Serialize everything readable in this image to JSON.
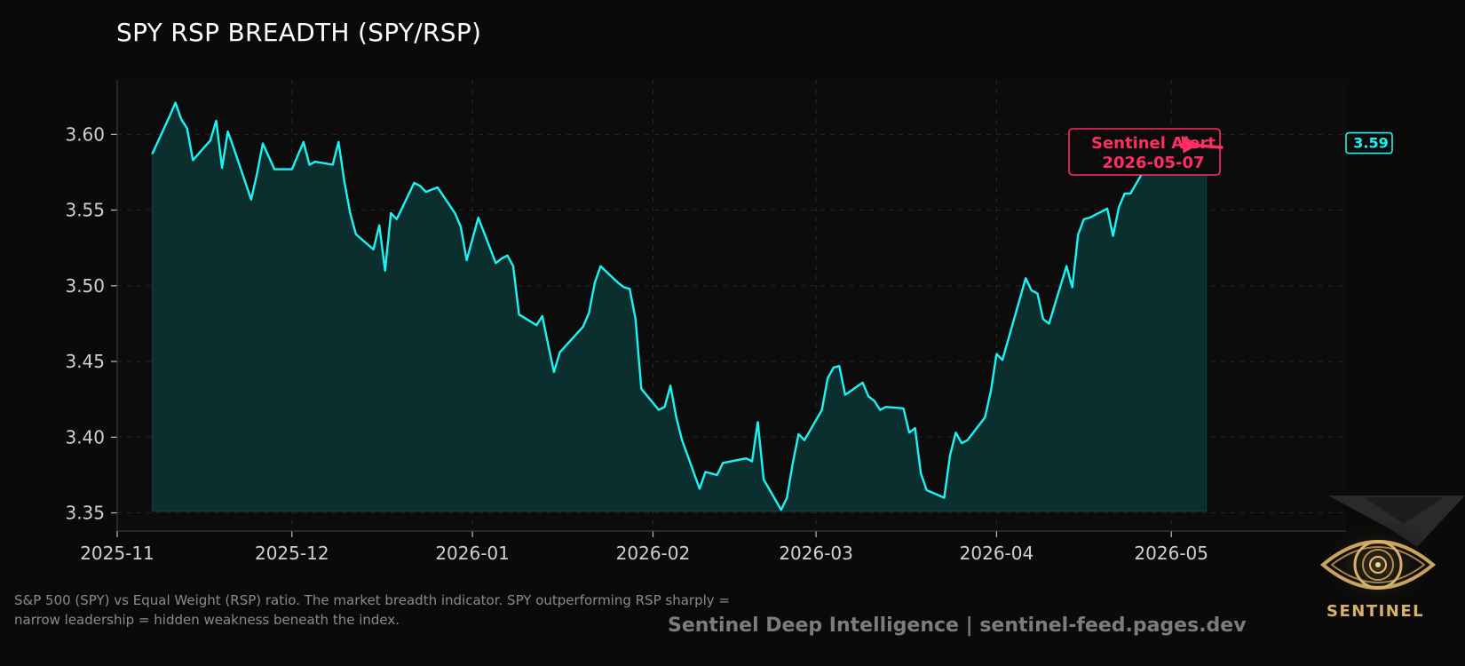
{
  "chart_data": {
    "type": "area",
    "title": "SPY RSP BREADTH (SPY/RSP)",
    "xlabel": "",
    "ylabel": "",
    "ylim": [
      3.338,
      3.636
    ],
    "xlim": [
      "2025-11-01",
      "2026-05-31"
    ],
    "y_ticks": [
      3.35,
      3.4,
      3.45,
      3.5,
      3.55,
      3.6
    ],
    "x_ticks": [
      "2025-11",
      "2025-12",
      "2026-01",
      "2026-02",
      "2026-03",
      "2026-04",
      "2026-05"
    ],
    "grid": true,
    "colors": {
      "line": "#19f5f5",
      "fill": "#0b2e2e",
      "alert": "#ff2d63",
      "background": "#0a0a0a"
    },
    "fill_baseline": 3.351,
    "series": [
      {
        "x": [
          "2025-11-07",
          "2025-11-10",
          "2025-11-11",
          "2025-11-12",
          "2025-11-13",
          "2025-11-14",
          "2025-11-17",
          "2025-11-18",
          "2025-11-19",
          "2025-11-20",
          "2025-11-21",
          "2025-11-24",
          "2025-11-25",
          "2025-11-26",
          "2025-11-28",
          "2025-12-01",
          "2025-12-02",
          "2025-12-03",
          "2025-12-04",
          "2025-12-05",
          "2025-12-08",
          "2025-12-09",
          "2025-12-10",
          "2025-12-11",
          "2025-12-12",
          "2025-12-15",
          "2025-12-16",
          "2025-12-17",
          "2025-12-18",
          "2025-12-19",
          "2025-12-22",
          "2025-12-23",
          "2025-12-24",
          "2025-12-26",
          "2025-12-29",
          "2025-12-30",
          "2025-12-31",
          "2026-01-02",
          "2026-01-05",
          "2026-01-06",
          "2026-01-07",
          "2026-01-08",
          "2026-01-09",
          "2026-01-12",
          "2026-01-13",
          "2026-01-14",
          "2026-01-15",
          "2026-01-16",
          "2026-01-20",
          "2026-01-21",
          "2026-01-22",
          "2026-01-23",
          "2026-01-26",
          "2026-01-27",
          "2026-01-28",
          "2026-01-29",
          "2026-01-30",
          "2026-02-02",
          "2026-02-03",
          "2026-02-04",
          "2026-02-05",
          "2026-02-06",
          "2026-02-09",
          "2026-02-10",
          "2026-02-11",
          "2026-02-12",
          "2026-02-13",
          "2026-02-17",
          "2026-02-18",
          "2026-02-19",
          "2026-02-20",
          "2026-02-23",
          "2026-02-24",
          "2026-02-25",
          "2026-02-26",
          "2026-02-27",
          "2026-03-02",
          "2026-03-03",
          "2026-03-04",
          "2026-03-05",
          "2026-03-06",
          "2026-03-09",
          "2026-03-10",
          "2026-03-11",
          "2026-03-12",
          "2026-03-13",
          "2026-03-16",
          "2026-03-17",
          "2026-03-18",
          "2026-03-19",
          "2026-03-20",
          "2026-03-23",
          "2026-03-24",
          "2026-03-25",
          "2026-03-26",
          "2026-03-27",
          "2026-03-30",
          "2026-03-31",
          "2026-04-01",
          "2026-04-02",
          "2026-04-06",
          "2026-04-07",
          "2026-04-08",
          "2026-04-09",
          "2026-04-10",
          "2026-04-13",
          "2026-04-14",
          "2026-04-15",
          "2026-04-16",
          "2026-04-17",
          "2026-04-20",
          "2026-04-21",
          "2026-04-22",
          "2026-04-23",
          "2026-04-24",
          "2026-04-27",
          "2026-04-28",
          "2026-04-29",
          "2026-04-30",
          "2026-05-01",
          "2026-05-04",
          "2026-05-05",
          "2026-05-06",
          "2026-05-07"
        ],
        "values": [
          3.587,
          3.612,
          3.621,
          3.61,
          3.604,
          3.583,
          3.596,
          3.609,
          3.578,
          3.602,
          3.591,
          3.557,
          3.574,
          3.594,
          3.577,
          3.577,
          3.586,
          3.595,
          3.58,
          3.582,
          3.58,
          3.595,
          3.569,
          3.548,
          3.534,
          3.524,
          3.54,
          3.51,
          3.548,
          3.544,
          3.568,
          3.566,
          3.562,
          3.565,
          3.548,
          3.539,
          3.517,
          3.545,
          3.515,
          3.518,
          3.52,
          3.513,
          3.481,
          3.474,
          3.48,
          3.461,
          3.443,
          3.456,
          3.473,
          3.482,
          3.502,
          3.513,
          3.502,
          3.499,
          3.498,
          3.478,
          3.432,
          3.418,
          3.42,
          3.434,
          3.413,
          3.398,
          3.366,
          3.377,
          3.376,
          3.375,
          3.383,
          3.386,
          3.384,
          3.41,
          3.372,
          3.352,
          3.36,
          3.383,
          3.402,
          3.398,
          3.418,
          3.439,
          3.446,
          3.447,
          3.428,
          3.436,
          3.427,
          3.424,
          3.418,
          3.42,
          3.419,
          3.403,
          3.406,
          3.376,
          3.365,
          3.36,
          3.388,
          3.403,
          3.396,
          3.398,
          3.413,
          3.43,
          3.455,
          3.451,
          3.505,
          3.497,
          3.495,
          3.478,
          3.475,
          3.513,
          3.499,
          3.534,
          3.544,
          3.545,
          3.551,
          3.533,
          3.552,
          3.561,
          3.561,
          3.581,
          3.594,
          3.594,
          3.594,
          3.594,
          3.594,
          3.594,
          3.594,
          3.594
        ]
      }
    ],
    "last_value_label": "3.59",
    "annotation": {
      "line1": "Sentinel Alert",
      "line2": "2026-05-07"
    }
  },
  "caption": "S&P 500 (SPY) vs Equal Weight (RSP) ratio. The market breadth indicator. SPY outperforming RSP sharply = narrow leadership = hidden weakness beneath the index.",
  "footer": "Sentinel Deep Intelligence  |  sentinel-feed.pages.dev",
  "logo": {
    "icon": "eye-icon",
    "text": "SENTINEL"
  }
}
